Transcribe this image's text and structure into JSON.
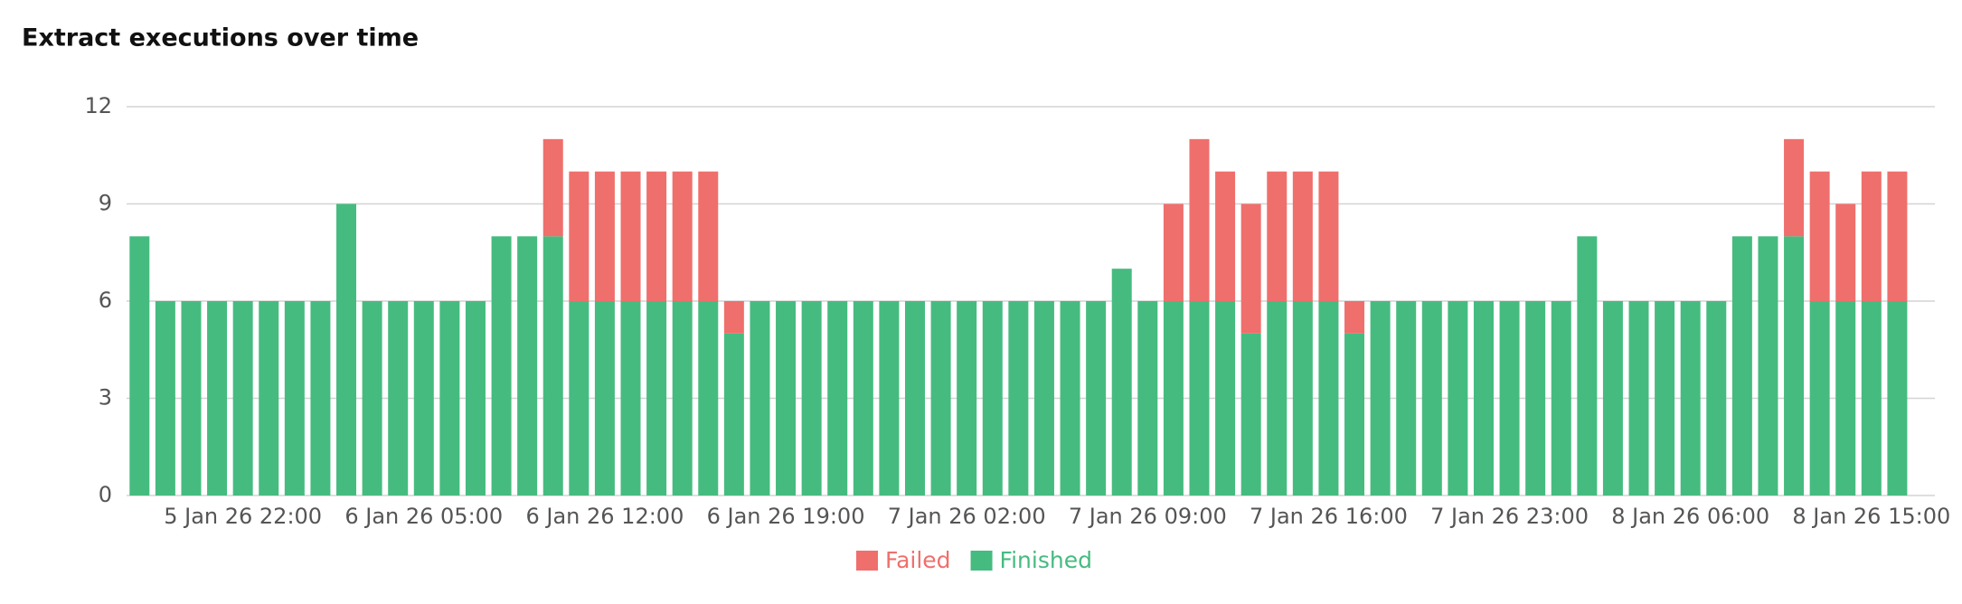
{
  "chart_data": {
    "type": "stacked-bar",
    "title": "Extract executions over time",
    "categories": [
      null,
      null,
      null,
      null,
      "5 Jan 26 22:00",
      null,
      null,
      null,
      null,
      null,
      null,
      "6 Jan 26 05:00",
      null,
      null,
      null,
      null,
      null,
      null,
      "6 Jan 26 12:00",
      null,
      null,
      null,
      null,
      null,
      null,
      "6 Jan 26 19:00",
      null,
      null,
      null,
      null,
      null,
      null,
      "7 Jan 26 02:00",
      null,
      null,
      null,
      null,
      null,
      null,
      "7 Jan 26 09:00",
      null,
      null,
      null,
      null,
      null,
      null,
      "7 Jan 26 16:00",
      null,
      null,
      null,
      null,
      null,
      null,
      "7 Jan 26 23:00",
      null,
      null,
      null,
      null,
      null,
      null,
      "8 Jan 26 06:00",
      null,
      null,
      null,
      null,
      null,
      null,
      "8 Jan 26 15:00",
      null
    ],
    "series": [
      {
        "name": "Failed",
        "color": "#ef6f6c",
        "values": [
          0,
          0,
          0,
          0,
          0,
          0,
          0,
          0,
          0,
          0,
          0,
          0,
          0,
          0,
          0,
          0,
          3,
          4,
          4,
          4,
          4,
          4,
          4,
          1,
          0,
          0,
          0,
          0,
          0,
          0,
          0,
          0,
          0,
          0,
          0,
          0,
          0,
          0,
          0,
          0,
          3,
          5,
          4,
          4,
          4,
          4,
          4,
          1,
          0,
          0,
          0,
          0,
          0,
          0,
          0,
          0,
          0,
          0,
          0,
          0,
          0,
          0,
          0,
          0,
          3,
          4,
          3,
          4,
          4
        ]
      },
      {
        "name": "Finished",
        "color": "#46bb80",
        "values": [
          8,
          6,
          6,
          6,
          6,
          6,
          6,
          6,
          9,
          6,
          6,
          6,
          6,
          6,
          8,
          8,
          8,
          6,
          6,
          6,
          6,
          6,
          6,
          5,
          6,
          6,
          6,
          6,
          6,
          6,
          6,
          6,
          6,
          6,
          6,
          6,
          6,
          6,
          7,
          6,
          6,
          6,
          6,
          5,
          6,
          6,
          6,
          5,
          6,
          6,
          6,
          6,
          6,
          6,
          6,
          6,
          8,
          6,
          6,
          6,
          6,
          6,
          8,
          8,
          8,
          6,
          6,
          6,
          6
        ]
      }
    ],
    "ylim": [
      0,
      12
    ],
    "yticks": [
      0,
      3,
      6,
      9,
      12
    ],
    "grid": true,
    "legend": "bottom"
  }
}
